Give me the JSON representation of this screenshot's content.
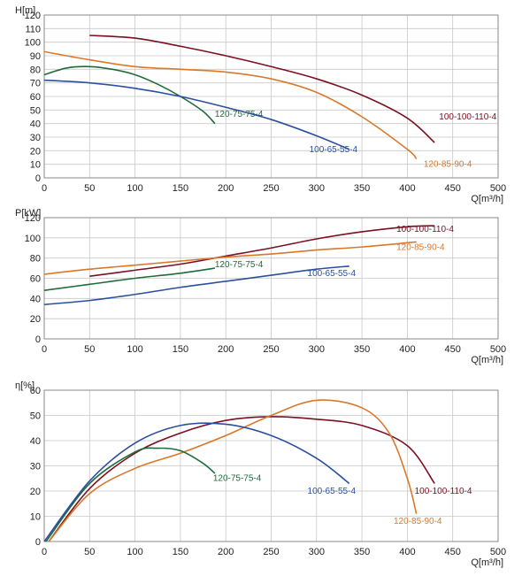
{
  "chart_data": [
    {
      "type": "line",
      "ylabel": "H[m]",
      "xlabel": "Q[m³/h]",
      "xlim": [
        0,
        500
      ],
      "ylim": [
        0,
        120
      ],
      "xticks": [
        "0",
        "50",
        "100",
        "150",
        "200",
        "250",
        "300",
        "350",
        "400",
        "450",
        "500"
      ],
      "yticks": [
        "0",
        "10",
        "20",
        "30",
        "40",
        "50",
        "60",
        "70",
        "80",
        "90",
        "100",
        "110",
        "120"
      ],
      "grid": true,
      "series": [
        {
          "name": "100-100-110-4",
          "color": "#7a1020",
          "x": [
            50,
            100,
            150,
            200,
            250,
            300,
            350,
            400,
            430
          ],
          "y": [
            105,
            103,
            97,
            90,
            82,
            73,
            61,
            44,
            26
          ]
        },
        {
          "name": "120-85-90-4",
          "color": "#d9782b",
          "x": [
            0,
            50,
            100,
            150,
            200,
            250,
            300,
            350,
            400,
            410
          ],
          "y": [
            93,
            87,
            82,
            80,
            78,
            73,
            63,
            45,
            21,
            14
          ]
        },
        {
          "name": "120-75-75-4",
          "color": "#1e6b3a",
          "x": [
            0,
            25,
            50,
            75,
            100,
            125,
            150,
            175,
            188
          ],
          "y": [
            76,
            81,
            82,
            80,
            76,
            69,
            60,
            49,
            40
          ]
        },
        {
          "name": "100-65-55-4",
          "color": "#2b4f9e",
          "x": [
            0,
            50,
            100,
            150,
            200,
            250,
            300,
            336
          ],
          "y": [
            72,
            70,
            66,
            60,
            52,
            43,
            31,
            21
          ]
        }
      ],
      "labels": [
        {
          "text": "100-100-110-4",
          "color": "#7a1020",
          "x": 435,
          "y": 43
        },
        {
          "text": "120-85-90-4",
          "color": "#d9782b",
          "x": 418,
          "y": 8
        },
        {
          "text": "120-75-75-4",
          "color": "#1e6b3a",
          "x": 188,
          "y": 45
        },
        {
          "text": "100-65-55-4",
          "color": "#2b4f9e",
          "x": 292,
          "y": 19
        }
      ]
    },
    {
      "type": "line",
      "ylabel": "P[kW]",
      "xlabel": "Q[m³/h]",
      "xlim": [
        0,
        500
      ],
      "ylim": [
        0,
        120
      ],
      "xticks": [
        "0",
        "50",
        "100",
        "150",
        "200",
        "250",
        "300",
        "350",
        "400",
        "450",
        "500"
      ],
      "yticks": [
        "0",
        "20",
        "40",
        "60",
        "80",
        "100",
        "120"
      ],
      "grid": true,
      "series": [
        {
          "name": "100-100-110-4",
          "color": "#7a1020",
          "x": [
            50,
            100,
            150,
            200,
            250,
            300,
            350,
            400,
            430
          ],
          "y": [
            62,
            68,
            74,
            82,
            90,
            99,
            106,
            111,
            112
          ]
        },
        {
          "name": "120-85-90-4",
          "color": "#d9782b",
          "x": [
            0,
            50,
            100,
            150,
            200,
            250,
            300,
            350,
            410
          ],
          "y": [
            64,
            69,
            73,
            77,
            81,
            84,
            88,
            91,
            96
          ]
        },
        {
          "name": "120-75-75-4",
          "color": "#1e6b3a",
          "x": [
            0,
            50,
            100,
            150,
            188
          ],
          "y": [
            48,
            54,
            60,
            65,
            70
          ]
        },
        {
          "name": "100-65-55-4",
          "color": "#2b4f9e",
          "x": [
            0,
            50,
            100,
            150,
            200,
            250,
            300,
            336
          ],
          "y": [
            34,
            38,
            44,
            51,
            57,
            63,
            69,
            72
          ]
        }
      ],
      "labels": [
        {
          "text": "100-100-110-4",
          "color": "#7a1020",
          "x": 388,
          "y": 106
        },
        {
          "text": "120-85-90-4",
          "color": "#d9782b",
          "x": 388,
          "y": 88
        },
        {
          "text": "120-75-75-4",
          "color": "#1e6b3a",
          "x": 188,
          "y": 71
        },
        {
          "text": "100-65-55-4",
          "color": "#2b4f9e",
          "x": 290,
          "y": 62
        }
      ]
    },
    {
      "type": "line",
      "ylabel": "η[%]",
      "xlabel": "Q[m³/h]",
      "xlim": [
        0,
        500
      ],
      "ylim": [
        0,
        60
      ],
      "xticks": [
        "0",
        "50",
        "100",
        "150",
        "200",
        "250",
        "300",
        "350",
        "400",
        "450",
        "500"
      ],
      "yticks": [
        "0",
        "10",
        "20",
        "30",
        "40",
        "50",
        "60"
      ],
      "grid": true,
      "series": [
        {
          "name": "100-100-110-4",
          "color": "#7a1020",
          "x": [
            5,
            50,
            100,
            150,
            200,
            250,
            300,
            350,
            400,
            430
          ],
          "y": [
            0,
            21,
            35,
            43,
            48,
            49.5,
            48.5,
            46,
            38,
            23
          ]
        },
        {
          "name": "120-85-90-4",
          "color": "#d9782b",
          "x": [
            5,
            50,
            100,
            150,
            200,
            250,
            300,
            350,
            380,
            400,
            410
          ],
          "y": [
            0,
            19,
            29,
            35,
            42,
            50,
            56,
            53,
            43,
            25,
            11
          ]
        },
        {
          "name": "120-75-75-4",
          "color": "#1e6b3a",
          "x": [
            2,
            50,
            100,
            125,
            150,
            175,
            188
          ],
          "y": [
            0,
            23,
            35.5,
            37,
            36,
            31,
            27
          ]
        },
        {
          "name": "100-65-55-4",
          "color": "#2b4f9e",
          "x": [
            0,
            50,
            100,
            150,
            200,
            250,
            300,
            336
          ],
          "y": [
            0,
            24,
            39,
            46,
            46.5,
            42,
            33,
            23
          ]
        }
      ],
      "labels": [
        {
          "text": "100-100-110-4",
          "color": "#7a1020",
          "x": 408,
          "y": 19
        },
        {
          "text": "120-85-90-4",
          "color": "#d9782b",
          "x": 385,
          "y": 7
        },
        {
          "text": "120-75-75-4",
          "color": "#1e6b3a",
          "x": 186,
          "y": 24
        },
        {
          "text": "100-65-55-4",
          "color": "#2b4f9e",
          "x": 290,
          "y": 19
        }
      ]
    }
  ]
}
